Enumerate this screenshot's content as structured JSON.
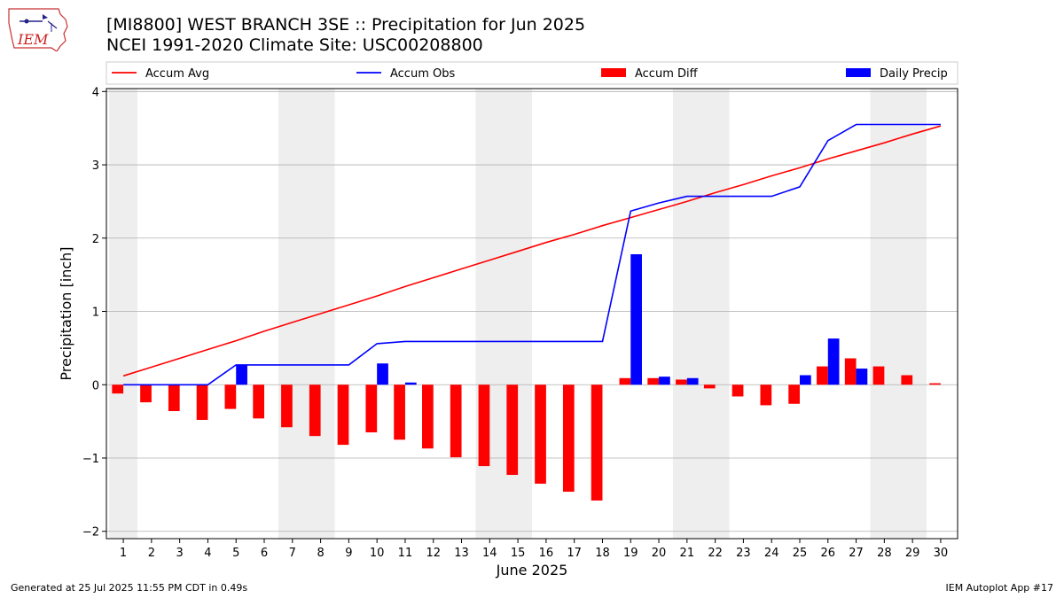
{
  "header": {
    "title_line1": "[MI8800] WEST BRANCH 3SE :: Precipitation for Jun 2025",
    "title_line2": "NCEI 1991-2020 Climate Site: USC00208800",
    "logo_text": "IEM"
  },
  "footer": {
    "left": "Generated at 25 Jul 2025 11:55 PM CDT in 0.49s",
    "right": "IEM Autoplot App #17"
  },
  "colors": {
    "accum_avg": "#ff0000",
    "accum_obs": "#0000ff",
    "accum_diff": "#ff0000",
    "daily_precip": "#0000ff",
    "weekend_shade": "#eeeeee",
    "grid": "#b0b0b0"
  },
  "chart_data": {
    "type": "bar",
    "title": "[MI8800] WEST BRANCH 3SE :: Precipitation for Jun 2025",
    "subtitle": "NCEI 1991-2020 Climate Site: USC00208800",
    "xlabel": "June 2025",
    "ylabel": "Precipitation [inch]",
    "ylim": [
      -2.1,
      4.04
    ],
    "yticks": [
      -2,
      -1,
      0,
      1,
      2,
      3,
      4
    ],
    "grid": true,
    "legend_position": "top",
    "categories": [
      "1",
      "2",
      "3",
      "4",
      "5",
      "6",
      "7",
      "8",
      "9",
      "10",
      "11",
      "12",
      "13",
      "14",
      "15",
      "16",
      "17",
      "18",
      "19",
      "20",
      "21",
      "22",
      "23",
      "24",
      "25",
      "26",
      "27",
      "28",
      "29",
      "30"
    ],
    "shaded_days": [
      [
        1,
        1
      ],
      [
        7,
        8
      ],
      [
        14,
        15
      ],
      [
        21,
        22
      ],
      [
        28,
        29
      ]
    ],
    "series": [
      {
        "name": "Accum Avg",
        "kind": "line",
        "values": [
          0.12,
          0.24,
          0.36,
          0.48,
          0.6,
          0.73,
          0.85,
          0.97,
          1.09,
          1.21,
          1.34,
          1.46,
          1.58,
          1.7,
          1.82,
          1.94,
          2.05,
          2.17,
          2.28,
          2.39,
          2.5,
          2.62,
          2.73,
          2.85,
          2.96,
          3.08,
          3.19,
          3.3,
          3.42,
          3.53
        ]
      },
      {
        "name": "Accum Obs",
        "kind": "line",
        "values": [
          0.0,
          0.0,
          0.0,
          0.0,
          0.27,
          0.27,
          0.27,
          0.27,
          0.27,
          0.56,
          0.59,
          0.59,
          0.59,
          0.59,
          0.59,
          0.59,
          0.59,
          0.59,
          2.37,
          2.48,
          2.57,
          2.57,
          2.57,
          2.57,
          2.7,
          3.33,
          3.55,
          3.55,
          3.55,
          3.55
        ]
      },
      {
        "name": "Accum Diff",
        "kind": "bar",
        "values": [
          -0.12,
          -0.24,
          -0.36,
          -0.48,
          -0.33,
          -0.46,
          -0.58,
          -0.7,
          -0.82,
          -0.65,
          -0.75,
          -0.87,
          -0.99,
          -1.11,
          -1.23,
          -1.35,
          -1.46,
          -1.58,
          0.09,
          0.09,
          0.07,
          -0.05,
          -0.16,
          -0.28,
          -0.26,
          0.25,
          0.36,
          0.25,
          0.13,
          0.02
        ]
      },
      {
        "name": "Daily Precip",
        "kind": "bar",
        "values": [
          0,
          0,
          0,
          0,
          0.27,
          0,
          0,
          0,
          0,
          0.29,
          0.03,
          0,
          0,
          0,
          0,
          0,
          0,
          0,
          1.78,
          0.11,
          0.09,
          0,
          0,
          0,
          0.13,
          0.63,
          0.22,
          0,
          0,
          0
        ]
      }
    ]
  }
}
